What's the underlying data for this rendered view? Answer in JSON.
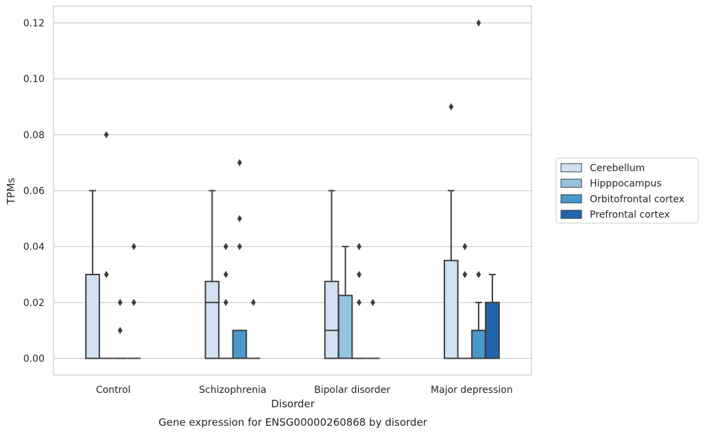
{
  "chart_data": {
    "type": "box",
    "caption": "Gene expression for ENSG00000260868 by disorder",
    "xlabel": "Disorder",
    "ylabel": "TPMs",
    "ylim": [
      -0.006,
      0.126
    ],
    "yticks": [
      0.0,
      0.02,
      0.04,
      0.06,
      0.08,
      0.1,
      0.12
    ],
    "ytick_labels": [
      "0.00",
      "0.02",
      "0.04",
      "0.06",
      "0.08",
      "0.10",
      "0.12"
    ],
    "grid": true,
    "legend_placement": "center-right (outside plot)",
    "categories": [
      "Control",
      "Schizophrenia",
      "Bipolar disorder",
      "Major depression"
    ],
    "series": [
      {
        "name": "Cerebellum",
        "color": "#d0e1f2",
        "boxes": [
          {
            "q1": 0.0,
            "median": 0.0,
            "q3": 0.03,
            "whisker_low": 0.0,
            "whisker_high": 0.06,
            "outliers": []
          },
          {
            "q1": 0.0,
            "median": 0.02,
            "q3": 0.0275,
            "whisker_low": 0.0,
            "whisker_high": 0.06,
            "outliers": []
          },
          {
            "q1": 0.0,
            "median": 0.01,
            "q3": 0.0275,
            "whisker_low": 0.0,
            "whisker_high": 0.06,
            "outliers": []
          },
          {
            "q1": 0.0,
            "median": 0.0,
            "q3": 0.035,
            "whisker_low": 0.0,
            "whisker_high": 0.06,
            "outliers": [
              0.09
            ]
          }
        ]
      },
      {
        "name": "Hipppocampus",
        "color": "#94c4df",
        "boxes": [
          {
            "q1": 0.0,
            "median": 0.0,
            "q3": 0.0,
            "whisker_low": 0.0,
            "whisker_high": 0.0,
            "outliers": [
              0.03,
              0.08
            ]
          },
          {
            "q1": 0.0,
            "median": 0.0,
            "q3": 0.0,
            "whisker_low": 0.0,
            "whisker_high": 0.0,
            "outliers": [
              0.02,
              0.03,
              0.04
            ]
          },
          {
            "q1": 0.0,
            "median": 0.0,
            "q3": 0.0225,
            "whisker_low": 0.0,
            "whisker_high": 0.04,
            "outliers": []
          },
          {
            "q1": 0.0,
            "median": 0.0,
            "q3": 0.0,
            "whisker_low": 0.0,
            "whisker_high": 0.0,
            "outliers": [
              0.03,
              0.04
            ]
          }
        ]
      },
      {
        "name": "Orbitofrontal cortex",
        "color": "#4a98c9",
        "boxes": [
          {
            "q1": 0.0,
            "median": 0.0,
            "q3": 0.0,
            "whisker_low": 0.0,
            "whisker_high": 0.0,
            "outliers": [
              0.01,
              0.02
            ]
          },
          {
            "q1": 0.0,
            "median": 0.0,
            "q3": 0.01,
            "whisker_low": 0.0,
            "whisker_high": 0.01,
            "outliers": [
              0.04,
              0.05,
              0.07
            ]
          },
          {
            "q1": 0.0,
            "median": 0.0,
            "q3": 0.0,
            "whisker_low": 0.0,
            "whisker_high": 0.0,
            "outliers": [
              0.02,
              0.03,
              0.04
            ]
          },
          {
            "q1": 0.0,
            "median": 0.0,
            "q3": 0.01,
            "whisker_low": 0.0,
            "whisker_high": 0.02,
            "outliers": [
              0.03,
              0.12
            ]
          }
        ]
      },
      {
        "name": "Prefrontal cortex",
        "color": "#2164ab",
        "boxes": [
          {
            "q1": 0.0,
            "median": 0.0,
            "q3": 0.0,
            "whisker_low": 0.0,
            "whisker_high": 0.0,
            "outliers": [
              0.02,
              0.04
            ]
          },
          {
            "q1": 0.0,
            "median": 0.0,
            "q3": 0.0,
            "whisker_low": 0.0,
            "whisker_high": 0.0,
            "outliers": [
              0.02
            ]
          },
          {
            "q1": 0.0,
            "median": 0.0,
            "q3": 0.0,
            "whisker_low": 0.0,
            "whisker_high": 0.0,
            "outliers": [
              0.02
            ]
          },
          {
            "q1": 0.0,
            "median": 0.0,
            "q3": 0.02,
            "whisker_low": 0.0,
            "whisker_high": 0.03,
            "outliers": []
          }
        ]
      }
    ]
  }
}
